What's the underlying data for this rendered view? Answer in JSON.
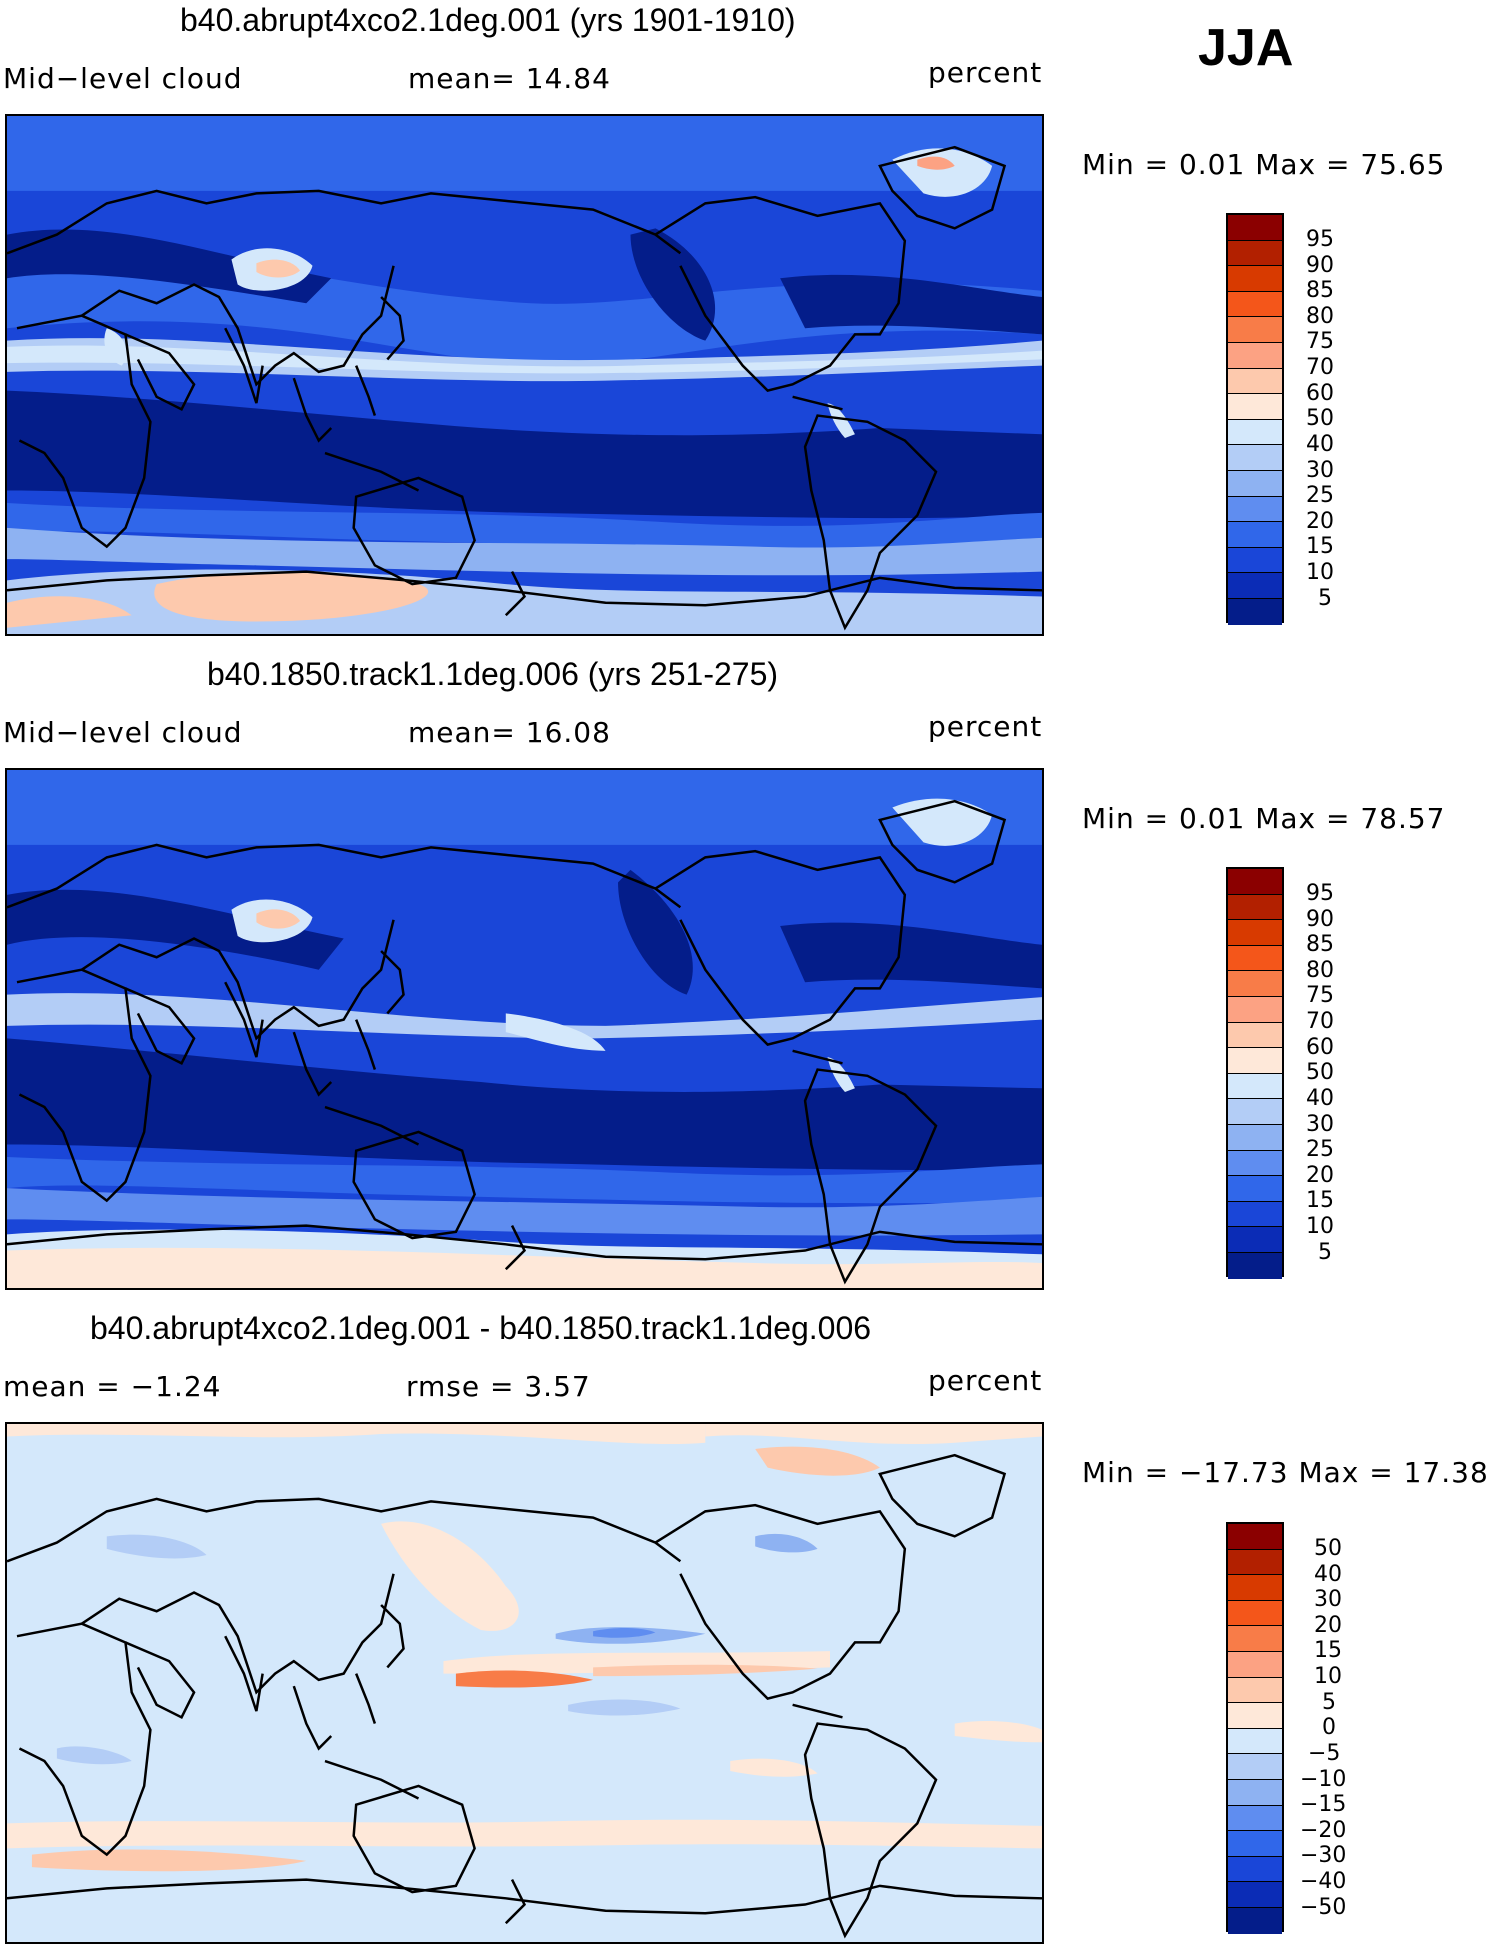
{
  "season": "JJA",
  "panels": [
    {
      "title": "b40.abrupt4xco2.1deg.001 (yrs 1901-1910)",
      "left_label": "Mid−level cloud",
      "mid_label": "mean=   14.84",
      "units": "percent",
      "minmax": "Min =      0.01  Max =    75.65",
      "map_kind": "cloud"
    },
    {
      "title": "b40.1850.track1.1deg.006 (yrs 251-275)",
      "left_label": "Mid−level cloud",
      "mid_label": "mean=   16.08",
      "units": "percent",
      "minmax": "Min =      0.01  Max =    78.57",
      "map_kind": "cloud"
    },
    {
      "title": "b40.abrupt4xco2.1deg.001 - b40.1850.track1.1deg.006",
      "left_label": "mean =   −1.24",
      "mid_label": "rmse =     3.57",
      "units": "percent",
      "minmax": "Min = −17.73  Max =    17.38",
      "map_kind": "diff"
    }
  ],
  "colorbars": {
    "cloud": {
      "labels": [
        "95",
        "90",
        "85",
        "80",
        "75",
        "70",
        "60",
        "50",
        "40",
        "30",
        "25",
        "20",
        "15",
        "10",
        "5"
      ],
      "colors": [
        "#8b0000",
        "#b22000",
        "#d83a00",
        "#f4561a",
        "#f87c48",
        "#fca283",
        "#fdc9ad",
        "#fee8d9",
        "#d4e8fb",
        "#b3cdf6",
        "#8eb2f2",
        "#5f8df0",
        "#3067ea",
        "#1a46d8",
        "#0b2cb6",
        "#041d8a"
      ]
    },
    "diff": {
      "labels": [
        "50",
        "40",
        "30",
        "20",
        "15",
        "10",
        "5",
        "0",
        "−5",
        "−10",
        "−15",
        "−20",
        "−30",
        "−40",
        "−50"
      ],
      "colors": [
        "#8b0000",
        "#b22000",
        "#d83a00",
        "#f4561a",
        "#f87c48",
        "#fca283",
        "#fdc9ad",
        "#fee8d9",
        "#d4e8fb",
        "#b3cdf6",
        "#8eb2f2",
        "#5f8df0",
        "#3067ea",
        "#1a46d8",
        "#0b2cb6",
        "#041d8a"
      ]
    }
  }
}
